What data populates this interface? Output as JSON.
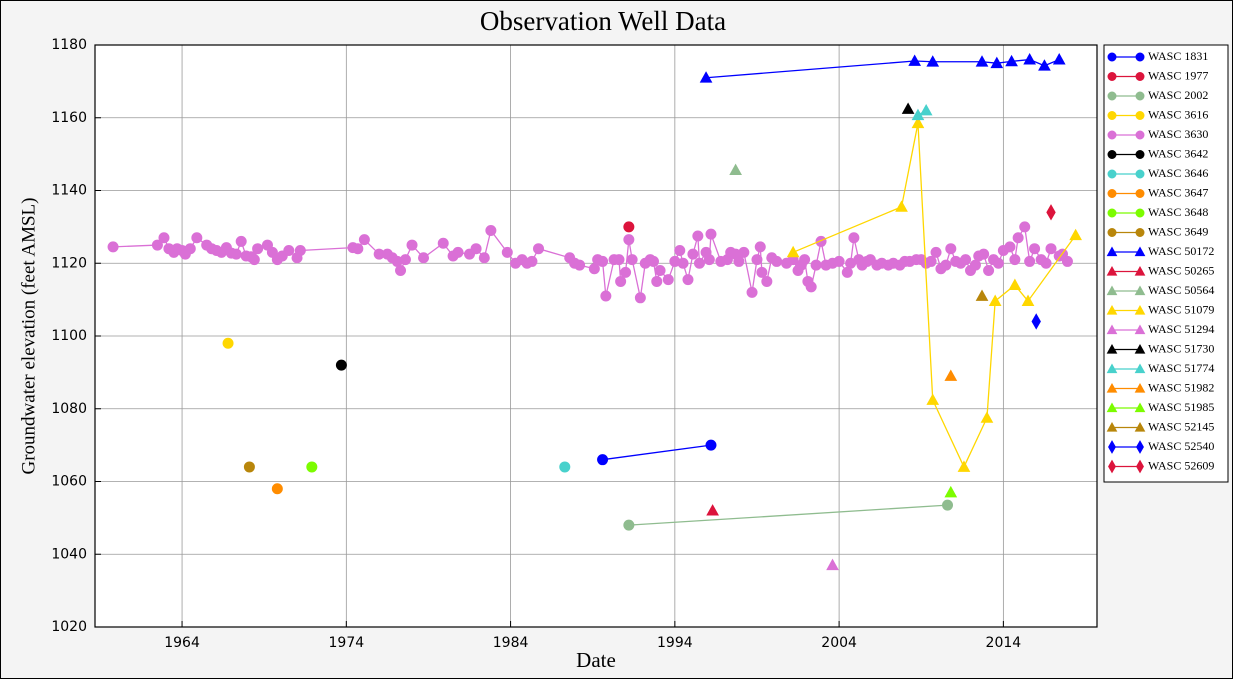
{
  "chart_data": {
    "type": "scatter",
    "title": "Observation Well Data",
    "x_label": "Date",
    "y_label": "Groundwater elevation (feet AMSL)",
    "xlim": [
      1958.7,
      2019.7
    ],
    "xticks": [
      1964,
      1974,
      1984,
      1994,
      2004,
      2014
    ],
    "ylim": [
      1020,
      1180
    ],
    "yticks": [
      1020,
      1040,
      1060,
      1080,
      1100,
      1120,
      1140,
      1160,
      1180
    ],
    "grid": true,
    "legend": "outside right",
    "series": [
      {
        "name": "WASC 1831",
        "color": "#0000ff",
        "marker": "circle",
        "x": [
          1989.6,
          1996.2
        ],
        "values": [
          1066,
          1070
        ]
      },
      {
        "name": "WASC 1977",
        "color": "#dc143c",
        "marker": "circle",
        "x": [
          1991.2
        ],
        "values": [
          1130
        ]
      },
      {
        "name": "WASC 2002",
        "color": "#8fbc8f",
        "marker": "circle",
        "x": [
          1991.2,
          2010.6
        ],
        "values": [
          1048,
          1053.5
        ]
      },
      {
        "name": "WASC 3616",
        "color": "#ffd700",
        "marker": "circle",
        "x": [
          1966.8
        ],
        "values": [
          1098
        ]
      },
      {
        "name": "WASC 3630",
        "color": "#da70d6",
        "marker": "circle",
        "x": [
          1959.8,
          1962.5,
          1962.9,
          1963.2,
          1963.5,
          1963.7,
          1964,
          1964.2,
          1964.5,
          1964.9,
          1965.5,
          1965.8,
          1966.1,
          1966.4,
          1966.7,
          1967,
          1967.3,
          1967.6,
          1967.9,
          1968.2,
          1968.4,
          1968.6,
          1969.2,
          1969.5,
          1969.8,
          1970.1,
          1970.5,
          1971,
          1971.2,
          1974.4,
          1974.7,
          1975.1,
          1976,
          1976.5,
          1976.8,
          1977.1,
          1977.3,
          1977.6,
          1978,
          1978.7,
          1979.9,
          1980.5,
          1980.8,
          1981.5,
          1981.9,
          1982.4,
          1982.8,
          1983.8,
          1984.3,
          1984.7,
          1985,
          1985.3,
          1985.7,
          1987.6,
          1987.9,
          1988.2,
          1989.1,
          1989.3,
          1989.6,
          1989.8,
          1990.3,
          1990.6,
          1990.7,
          1991,
          1991.2,
          1991.4,
          1991.9,
          1992.2,
          1992.5,
          1992.7,
          1992.9,
          1993.1,
          1993.6,
          1994,
          1994.3,
          1994.5,
          1994.8,
          1995.1,
          1995.4,
          1995.5,
          1995.9,
          1996.1,
          1996.2,
          1996.8,
          1997.2,
          1997.4,
          1997.7,
          1997.9,
          1998.2,
          1998.7,
          1999,
          1999.2,
          1999.3,
          1999.6,
          1999.9,
          2000.2,
          2000.8,
          2001.2,
          2001.5,
          2001.7,
          2001.9,
          2002.1,
          2002.3,
          2002.6,
          2002.9,
          2003.2,
          2003.6,
          2004,
          2004.5,
          2004.7,
          2004.9,
          2005.2,
          2005.4,
          2005.7,
          2005.9,
          2006.3,
          2006.6,
          2007,
          2007.3,
          2007.7,
          2008,
          2008.3,
          2008.7,
          2009,
          2009.3,
          2009.6,
          2009.9,
          2010.2,
          2010.5,
          2010.8,
          2011.1,
          2011.4,
          2011.7,
          2012,
          2012.3,
          2012.5,
          2012.8,
          2013.1,
          2013.4,
          2013.7,
          2014,
          2014.4,
          2014.7,
          2014.9,
          2015.3,
          2015.6,
          2015.9,
          2016.3,
          2016.6,
          2016.9,
          2017.4,
          2017.6,
          2017.9
        ],
        "values": [
          1124.5,
          1125,
          1127,
          1124,
          1123,
          1124,
          1123.5,
          1122.5,
          1124,
          1127,
          1125,
          1124,
          1123.5,
          1123,
          1124.3,
          1122.8,
          1122.5,
          1126,
          1122,
          1121.8,
          1121,
          1124,
          1125,
          1123,
          1121,
          1122,
          1123.5,
          1121.5,
          1123.5,
          1124.3,
          1124,
          1126.5,
          1122.5,
          1122.5,
          1121.5,
          1120.5,
          1118,
          1121,
          1125,
          1121.5,
          1125.5,
          1122,
          1123,
          1122.5,
          1124,
          1121.5,
          1129,
          1123,
          1120,
          1121,
          1120,
          1120.5,
          1124,
          1121.5,
          1120,
          1119.5,
          1118.5,
          1121,
          1120.5,
          1111,
          1121,
          1121,
          1115,
          1117.5,
          1126.5,
          1121,
          1110.5,
          1120,
          1121,
          1120.5,
          1115,
          1118,
          1115.5,
          1120.5,
          1123.5,
          1120,
          1115.5,
          1122.5,
          1127.5,
          1120,
          1123,
          1121,
          1128,
          1120.5,
          1121,
          1123,
          1122.5,
          1120.5,
          1123,
          1112,
          1121,
          1124.5,
          1117.5,
          1115,
          1121.5,
          1120.5,
          1120,
          1121,
          1118,
          1119.5,
          1121,
          1115,
          1113.5,
          1119.5,
          1126,
          1119.5,
          1120,
          1120.5,
          1117.5,
          1120,
          1127,
          1121,
          1119.5,
          1120.5,
          1121,
          1119.5,
          1120,
          1119.5,
          1120,
          1119.5,
          1120.5,
          1120.5,
          1121,
          1121,
          1120,
          1120.5,
          1123,
          1118.5,
          1119.5,
          1124,
          1120.5,
          1120,
          1121,
          1118,
          1119.5,
          1122,
          1122.5,
          1118,
          1121,
          1120,
          1123.5,
          1124.5,
          1121,
          1127,
          1130,
          1120.5,
          1124,
          1121,
          1120,
          1124,
          1122,
          1122.5,
          1120.5
        ]
      },
      {
        "name": "WASC 3642",
        "color": "#000000",
        "marker": "circle",
        "x": [
          1973.7
        ],
        "values": [
          1092
        ]
      },
      {
        "name": "WASC 3646",
        "color": "#48d1cc",
        "marker": "circle",
        "x": [
          1987.3
        ],
        "values": [
          1064
        ]
      },
      {
        "name": "WASC 3647",
        "color": "#ff8c00",
        "marker": "circle",
        "x": [
          1969.8
        ],
        "values": [
          1058
        ]
      },
      {
        "name": "WASC 3648",
        "color": "#7cfc00",
        "marker": "circle",
        "x": [
          1971.9
        ],
        "values": [
          1064
        ]
      },
      {
        "name": "WASC 3649",
        "color": "#b8860b",
        "marker": "circle",
        "x": [
          1968.1
        ],
        "values": [
          1064
        ]
      },
      {
        "name": "WASC 50172",
        "color": "#0000ff",
        "marker": "triangle",
        "x": [
          1995.9,
          2008.6,
          2009.7,
          2012.7,
          2013.6,
          2014.5,
          2015.6,
          2016.5,
          2017.4
        ],
        "values": [
          1171,
          1175.6,
          1175.4,
          1175.4,
          1175,
          1175.5,
          1176,
          1174.3,
          1176
        ]
      },
      {
        "name": "WASC 50265",
        "color": "#dc143c",
        "marker": "triangle",
        "x": [
          1996.3
        ],
        "values": [
          1052
        ]
      },
      {
        "name": "WASC 50564",
        "color": "#8fbc8f",
        "marker": "triangle",
        "x": [
          1997.7
        ],
        "values": [
          1145.6
        ]
      },
      {
        "name": "WASC 51079",
        "color": "#ffd700",
        "marker": "triangle",
        "x": [
          2001.2,
          2007.8,
          2008.8,
          2009.7,
          2011.6,
          2013,
          2013.5,
          2014.7,
          2015.5,
          2018.4
        ],
        "values": [
          1123,
          1135.5,
          1158.5,
          1082.4,
          1064,
          1077.5,
          1109.6,
          1114,
          1109.6,
          1127.7
        ]
      },
      {
        "name": "WASC 51294",
        "color": "#da70d6",
        "marker": "triangle",
        "x": [
          2003.6
        ],
        "values": [
          1037
        ]
      },
      {
        "name": "WASC 51730",
        "color": "#000000",
        "marker": "triangle",
        "x": [
          2008.2
        ],
        "values": [
          1162.4
        ]
      },
      {
        "name": "WASC 51774",
        "color": "#48d1cc",
        "marker": "triangle",
        "x": [
          2008.8,
          2009.3
        ],
        "values": [
          1160.7,
          1162
        ]
      },
      {
        "name": "WASC 51982",
        "color": "#ff8c00",
        "marker": "triangle",
        "x": [
          2010.8
        ],
        "values": [
          1089
        ]
      },
      {
        "name": "WASC 51985",
        "color": "#7cfc00",
        "marker": "triangle",
        "x": [
          2010.8
        ],
        "values": [
          1057
        ]
      },
      {
        "name": "WASC 52145",
        "color": "#b8860b",
        "marker": "triangle",
        "x": [
          2012.7
        ],
        "values": [
          1111
        ]
      },
      {
        "name": "WASC 52540",
        "color": "#0000ff",
        "marker": "diamond",
        "x": [
          2016
        ],
        "values": [
          1104
        ]
      },
      {
        "name": "WASC 52609",
        "color": "#dc143c",
        "marker": "diamond",
        "x": [
          2016.9
        ],
        "values": [
          1134
        ]
      }
    ]
  }
}
